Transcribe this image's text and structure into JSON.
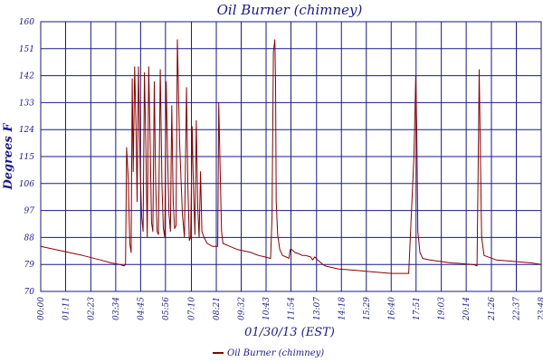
{
  "chart_data": {
    "type": "line",
    "title": "Oil Burner (chimney)",
    "xlabel": "01/30/13 (EST)",
    "ylabel": "Degrees F",
    "ylim": [
      70,
      160
    ],
    "yticks": [
      70,
      79,
      88,
      97,
      106,
      115,
      124,
      133,
      142,
      151,
      160
    ],
    "xlim": [
      0,
      1428
    ],
    "xticks": [
      {
        "value": 0,
        "label": "00:00"
      },
      {
        "value": 71,
        "label": "01:11"
      },
      {
        "value": 143,
        "label": "02:23"
      },
      {
        "value": 214,
        "label": "03:34"
      },
      {
        "value": 285,
        "label": "04:45"
      },
      {
        "value": 356,
        "label": "05:56"
      },
      {
        "value": 430,
        "label": "07:10"
      },
      {
        "value": 501,
        "label": "08:21"
      },
      {
        "value": 572,
        "label": "09:32"
      },
      {
        "value": 643,
        "label": "10:43"
      },
      {
        "value": 714,
        "label": "11:54"
      },
      {
        "value": 787,
        "label": "13:07"
      },
      {
        "value": 858,
        "label": "14:18"
      },
      {
        "value": 929,
        "label": "15:29"
      },
      {
        "value": 1000,
        "label": "16:40"
      },
      {
        "value": 1071,
        "label": "17:51"
      },
      {
        "value": 1143,
        "label": "19:03"
      },
      {
        "value": 1214,
        "label": "20:14"
      },
      {
        "value": 1286,
        "label": "21:26"
      },
      {
        "value": 1357,
        "label": "22:37"
      },
      {
        "value": 1428,
        "label": "23:48"
      }
    ],
    "grid": true,
    "legend_position": "bottom",
    "series": [
      {
        "name": "Oil Burner (chimney)",
        "color": "#8b0000",
        "x": [
          0,
          60,
          120,
          170,
          200,
          225,
          238,
          242,
          245,
          250,
          254,
          258,
          261,
          264,
          268,
          272,
          275,
          279,
          284,
          288,
          292,
          296,
          300,
          304,
          308,
          312,
          316,
          320,
          324,
          328,
          332,
          336,
          341,
          346,
          350,
          354,
          358,
          362,
          366,
          370,
          374,
          378,
          382,
          386,
          390,
          396,
          404,
          410,
          416,
          420,
          424,
          428,
          432,
          436,
          440,
          444,
          448,
          452,
          456,
          460,
          466,
          475,
          490,
          505,
          508,
          512,
          516,
          520,
          540,
          560,
          580,
          600,
          610,
          622,
          640,
          656,
          660,
          664,
          668,
          670,
          672,
          676,
          682,
          690,
          700,
          708,
          712,
          716,
          725,
          738,
          746,
          756,
          770,
          776,
          782,
          790,
          800,
          805,
          812,
          830,
          850,
          900,
          950,
          1000,
          1050,
          1065,
          1070,
          1073,
          1076,
          1082,
          1090,
          1110,
          1140,
          1170,
          1200,
          1230,
          1240,
          1245,
          1248,
          1251,
          1254,
          1258,
          1265,
          1300,
          1350,
          1400,
          1428
        ],
        "y": [
          85,
          83.5,
          82,
          80.5,
          79.5,
          79,
          78.5,
          79,
          118,
          107,
          86,
          83,
          141,
          110,
          145,
          125,
          100,
          145,
          110,
          95,
          90,
          143,
          118,
          88,
          145,
          122,
          93,
          90,
          140,
          106,
          90,
          89,
          144,
          105,
          91,
          88,
          140,
          115,
          96,
          90,
          132,
          100,
          91,
          92,
          154,
          120,
          96,
          88,
          138,
          105,
          87,
          88,
          125,
          104,
          89,
          127,
          98,
          88,
          110,
          90,
          88,
          86,
          85,
          85,
          133,
          110,
          90,
          86,
          85,
          84,
          83.5,
          83,
          82.5,
          82,
          81.5,
          81,
          95,
          150,
          154,
          140,
          100,
          89,
          84,
          82,
          81.5,
          81,
          84,
          84,
          83,
          82.5,
          82,
          82,
          81.5,
          80.5,
          81.5,
          80.5,
          79.5,
          79,
          78.5,
          78,
          77.5,
          77,
          76.5,
          76,
          76,
          115,
          142,
          125,
          90,
          83,
          81,
          80.5,
          80,
          79.5,
          79.3,
          79,
          78.8,
          78.5,
          110,
          144,
          120,
          88,
          82,
          80.5,
          80,
          79.5,
          79
        ]
      }
    ]
  }
}
